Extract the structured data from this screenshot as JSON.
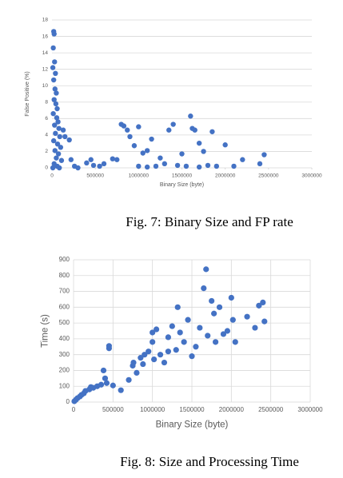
{
  "chart_data": [
    {
      "type": "scatter",
      "x_label": "Binary Size (byte)",
      "y_label": "False Positive (%)",
      "color": "#4472c4",
      "grid": "y",
      "xlim": [
        0,
        3000000
      ],
      "xticks": [
        0,
        500000,
        1000000,
        1500000,
        2000000,
        2500000,
        3000000
      ],
      "ylim": [
        0,
        18
      ],
      "yticks": [
        0,
        2,
        4,
        6,
        8,
        10,
        12,
        14,
        16,
        18
      ],
      "x": [
        20000,
        25000,
        15000,
        30000,
        10000,
        40000,
        20000,
        35000,
        50000,
        25000,
        45000,
        60000,
        15000,
        55000,
        70000,
        30000,
        80000,
        40000,
        90000,
        20000,
        65000,
        100000,
        35000,
        75000,
        50000,
        110000,
        25000,
        60000,
        10000,
        85000,
        130000,
        150000,
        200000,
        220000,
        260000,
        300000,
        400000,
        450000,
        480000,
        550000,
        600000,
        700000,
        750000,
        800000,
        830000,
        870000,
        900000,
        950000,
        1000000,
        1050000,
        1100000,
        1150000,
        1200000,
        1250000,
        1300000,
        1350000,
        1400000,
        1450000,
        1500000,
        1550000,
        1600000,
        1620000,
        1650000,
        1700000,
        1750000,
        1800000,
        1850000,
        1900000,
        2000000,
        2100000,
        2200000,
        2400000,
        2450000,
        1000000,
        1100000,
        1700000
      ],
      "values": [
        16.6,
        16.3,
        14.6,
        12.9,
        12.2,
        11.5,
        10.7,
        9.6,
        9.1,
        8.3,
        7.8,
        7.2,
        6.6,
        6.1,
        5.6,
        5.2,
        4.8,
        4.2,
        3.8,
        3.3,
        2.9,
        2.5,
        2.1,
        1.7,
        1.2,
        0.9,
        0.5,
        0.2,
        0,
        0,
        4.6,
        3.8,
        3.4,
        1.0,
        0.2,
        0,
        0.6,
        1.0,
        0.3,
        0.2,
        0.5,
        1.1,
        1.0,
        5.3,
        5.1,
        4.6,
        3.8,
        2.7,
        5.0,
        1.8,
        2.1,
        3.5,
        0.2,
        1.2,
        0.5,
        4.6,
        5.3,
        0.3,
        1.7,
        0.2,
        6.3,
        4.8,
        4.6,
        3.0,
        2.0,
        0.3,
        4.4,
        0.2,
        2.8,
        0.2,
        1.0,
        0.5,
        1.6,
        0.2,
        0.1,
        0.1
      ]
    },
    {
      "type": "scatter",
      "x_label": "Binary Size (byte)",
      "y_label": "Time (s)",
      "color": "#4472c4",
      "grid": "both",
      "xlim": [
        0,
        3000000
      ],
      "xticks": [
        0,
        500000,
        1000000,
        1500000,
        2000000,
        2500000,
        3000000
      ],
      "ylim": [
        0,
        900
      ],
      "yticks": [
        0,
        100,
        200,
        300,
        400,
        500,
        600,
        700,
        800,
        900
      ],
      "x": [
        10000,
        30000,
        50000,
        80000,
        100000,
        130000,
        150000,
        200000,
        220000,
        250000,
        300000,
        350000,
        380000,
        400000,
        420000,
        450000,
        450000,
        500000,
        600000,
        700000,
        750000,
        760000,
        800000,
        850000,
        880000,
        900000,
        950000,
        1000000,
        1000000,
        1020000,
        1050000,
        1100000,
        1150000,
        1200000,
        1200000,
        1250000,
        1300000,
        1320000,
        1350000,
        1400000,
        1450000,
        1500000,
        1550000,
        1600000,
        1650000,
        1680000,
        1700000,
        1750000,
        1780000,
        1800000,
        1850000,
        1900000,
        1950000,
        2000000,
        2020000,
        2050000,
        2200000,
        2300000,
        2350000,
        2400000,
        2420000
      ],
      "values": [
        5,
        15,
        25,
        35,
        45,
        55,
        70,
        80,
        95,
        90,
        100,
        110,
        200,
        150,
        120,
        340,
        355,
        105,
        75,
        140,
        230,
        250,
        185,
        280,
        240,
        300,
        320,
        440,
        380,
        270,
        460,
        300,
        250,
        320,
        410,
        480,
        330,
        600,
        440,
        380,
        520,
        290,
        350,
        470,
        720,
        840,
        420,
        640,
        560,
        380,
        600,
        430,
        450,
        660,
        520,
        380,
        540,
        470,
        610,
        630,
        510
      ]
    }
  ],
  "captions": [
    "Fig. 7: Binary Size and FP rate",
    "Fig. 8: Size and Processing Time"
  ]
}
